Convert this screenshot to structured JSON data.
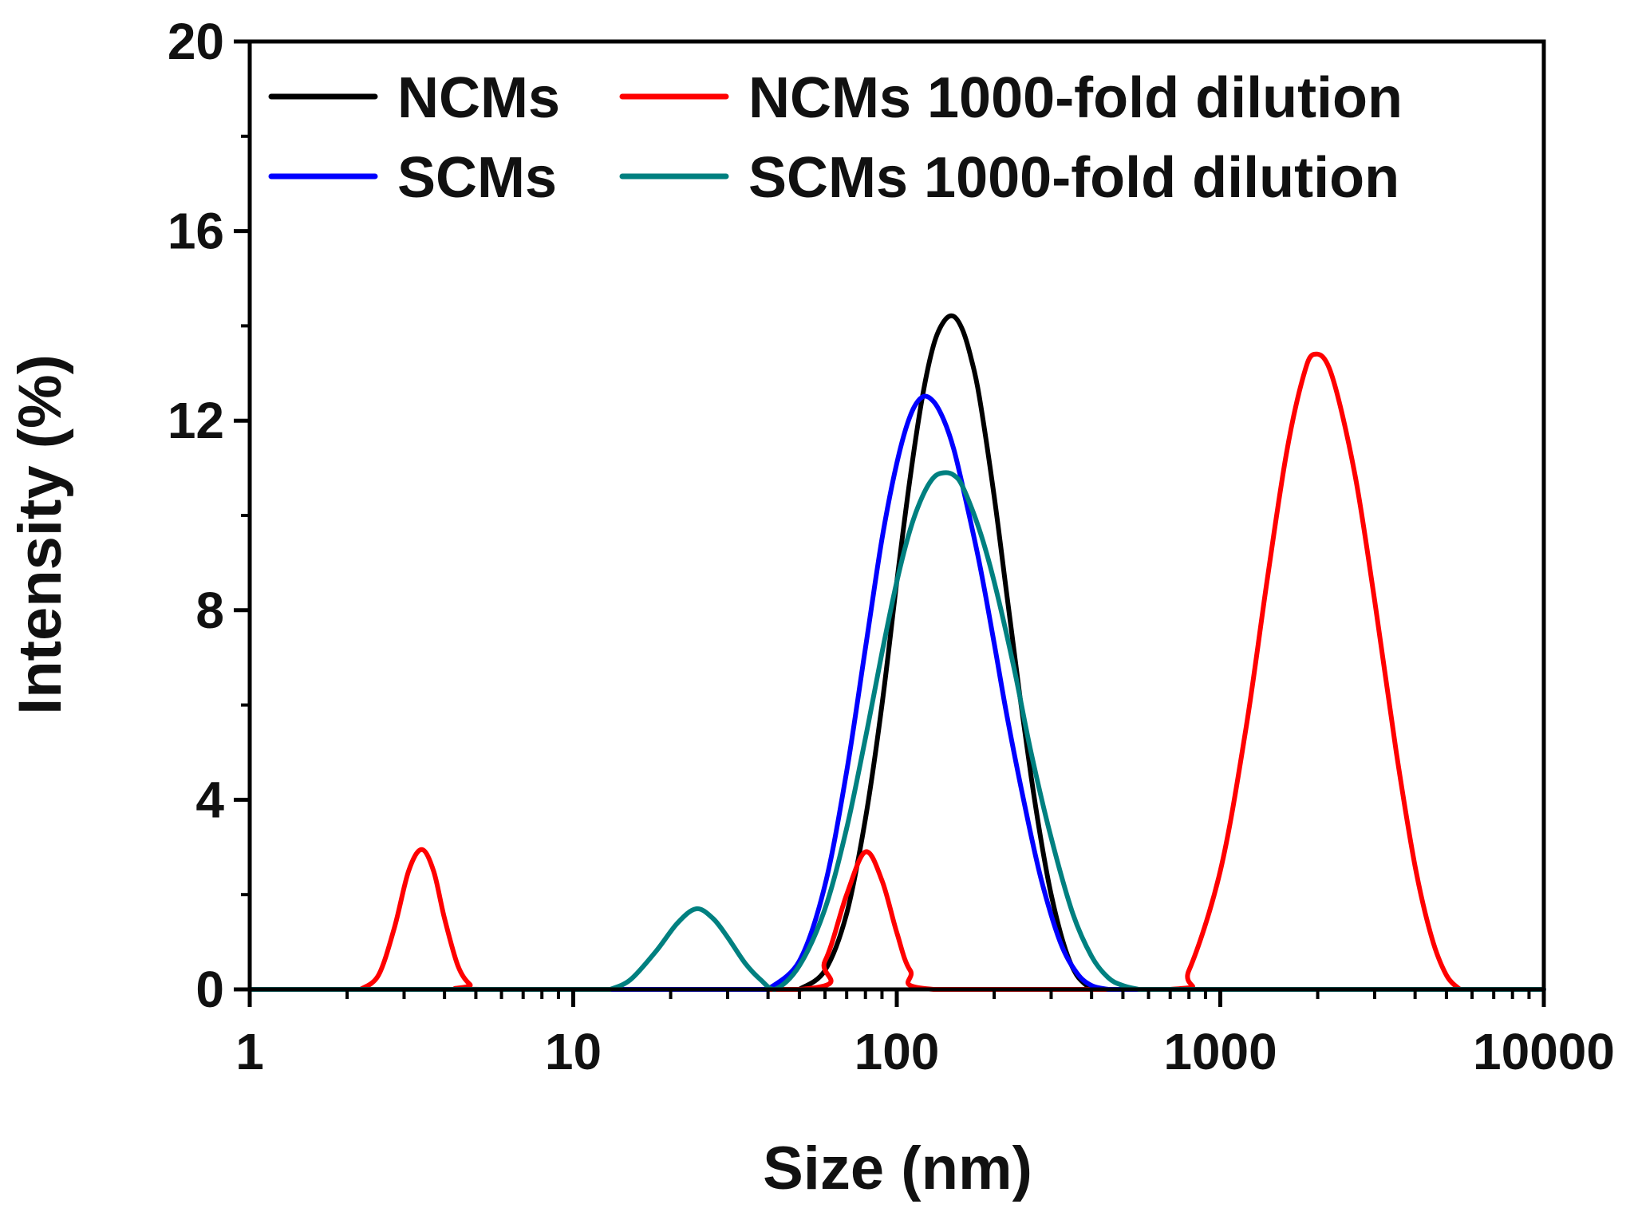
{
  "chart_data": {
    "type": "line",
    "title": "",
    "xlabel": "Size (nm)",
    "ylabel": "Intensity (%)",
    "xscale": "log",
    "xlim": [
      1,
      10000
    ],
    "ylim": [
      0,
      20
    ],
    "x_ticks": [
      1,
      10,
      100,
      1000,
      10000
    ],
    "x_tick_labels": [
      "1",
      "10",
      "100",
      "1000",
      "10000"
    ],
    "y_ticks": [
      0,
      4,
      8,
      12,
      16,
      20
    ],
    "y_tick_labels": [
      "0",
      "4",
      "8",
      "12",
      "16",
      "20"
    ],
    "grid": false,
    "legend_position": "top",
    "series": [
      {
        "name": "NCMs",
        "color": "#000000",
        "x": [
          50,
          60,
          70,
          80,
          90,
          100,
          110,
          120,
          130,
          140,
          150,
          160,
          170,
          180,
          200,
          220,
          240,
          260,
          280,
          300,
          330,
          360,
          400
        ],
        "y": [
          0,
          0.4,
          1.6,
          3.6,
          6.0,
          8.6,
          10.8,
          12.5,
          13.6,
          14.1,
          14.2,
          13.9,
          13.3,
          12.5,
          10.4,
          8.2,
          6.2,
          4.5,
          3.1,
          2.0,
          0.9,
          0.3,
          0
        ]
      },
      {
        "name": "NCMs 1000-fold dilution",
        "color": "#ff0000",
        "x": [
          2.2,
          2.5,
          2.8,
          3.1,
          3.4,
          3.7,
          4.0,
          4.4,
          4.8,
          5.2,
          50,
          60,
          70,
          80,
          90,
          100,
          110,
          130,
          700,
          800,
          1000,
          1200,
          1400,
          1600,
          1800,
          1950,
          2200,
          2600,
          3000,
          3500,
          4000,
          4500,
          5000,
          5500
        ],
        "y": [
          0,
          0.3,
          1.3,
          2.5,
          2.95,
          2.5,
          1.5,
          0.5,
          0.1,
          0,
          0,
          0.6,
          2.0,
          2.9,
          2.3,
          1.2,
          0.4,
          0,
          0,
          0.4,
          2.5,
          5.5,
          8.7,
          11.3,
          12.9,
          13.4,
          13.0,
          10.9,
          8.2,
          5.0,
          2.6,
          1.1,
          0.3,
          0
        ]
      },
      {
        "name": "SCMs",
        "color": "#0000ff",
        "x": [
          40,
          50,
          60,
          70,
          80,
          90,
          100,
          110,
          120,
          130,
          140,
          150,
          160,
          180,
          200,
          220,
          250,
          280,
          320,
          360,
          400,
          450
        ],
        "y": [
          0,
          0.6,
          2.2,
          4.6,
          7.2,
          9.5,
          11.1,
          12.1,
          12.5,
          12.4,
          12.0,
          11.4,
          10.6,
          9.0,
          7.3,
          5.7,
          3.8,
          2.3,
          1.0,
          0.35,
          0.08,
          0
        ]
      },
      {
        "name": "SCMs 1000-fold dilution",
        "color": "#008080",
        "x": [
          13,
          15,
          18,
          21,
          24,
          27,
          30,
          34,
          38,
          42,
          50,
          60,
          70,
          80,
          90,
          100,
          110,
          120,
          130,
          140,
          150,
          160,
          180,
          200,
          230,
          260,
          300,
          350,
          400,
          450,
          500,
          560
        ],
        "y": [
          0,
          0.2,
          0.8,
          1.4,
          1.7,
          1.5,
          1.1,
          0.55,
          0.2,
          0,
          0.5,
          1.7,
          3.4,
          5.3,
          7.1,
          8.6,
          9.7,
          10.4,
          10.8,
          10.9,
          10.85,
          10.6,
          9.7,
          8.6,
          6.8,
          5.0,
          3.2,
          1.6,
          0.7,
          0.25,
          0.08,
          0
        ]
      }
    ],
    "legend": [
      {
        "label": "NCMs",
        "color": "#000000"
      },
      {
        "label": "NCMs 1000-fold dilution",
        "color": "#ff0000"
      },
      {
        "label": "SCMs",
        "color": "#0000ff"
      },
      {
        "label": "SCMs 1000-fold dilution",
        "color": "#008080"
      }
    ]
  }
}
